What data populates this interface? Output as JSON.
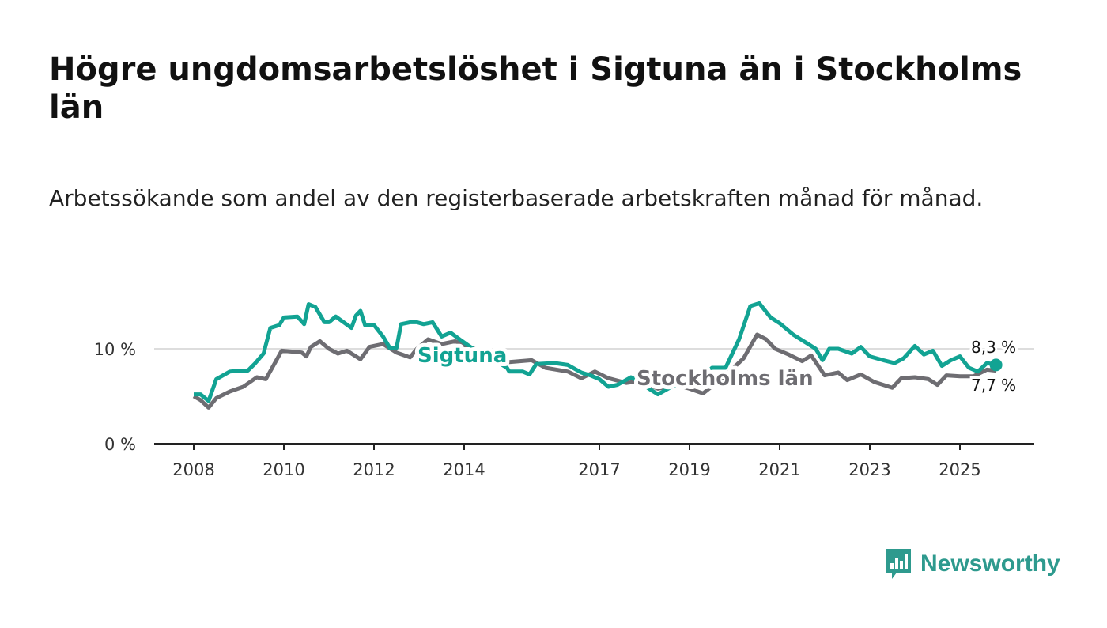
{
  "title": "Högre ungdomsarbetslöshet i Sigtuna än i Stockholms län",
  "subtitle": "Arbetssökande som andel av den registerbaserade arbetskraften månad för månad.",
  "brand": "Newsworthy",
  "colors": {
    "sigtuna": "#12a393",
    "stockholm": "#6e6d72",
    "grid": "#dddddd",
    "axis": "#222222",
    "brand": "#2e9a8e"
  },
  "chart_data": {
    "type": "line",
    "title": "Högre ungdomsarbetslöshet i Sigtuna än i Stockholms län",
    "xlabel": "",
    "ylabel": "",
    "xlim": [
      2007.5,
      2026.6
    ],
    "ylim": [
      0,
      15
    ],
    "x_ticks": [
      2008,
      2010,
      2012,
      2014,
      2017,
      2019,
      2021,
      2023,
      2025
    ],
    "x_tick_labels": [
      "2008",
      "2010",
      "2012",
      "2014",
      "2017",
      "2019",
      "2021",
      "2023",
      "2025"
    ],
    "y_ticks": [
      0,
      10
    ],
    "y_tick_labels": [
      "0 %",
      "10 %"
    ],
    "grid": "horizontal",
    "series": [
      {
        "name": "Sigtuna",
        "label": "Sigtuna",
        "end_label": "8,3 %",
        "points": [
          [
            2008.0,
            5.2
          ],
          [
            2008.15,
            5.2
          ],
          [
            2008.33,
            4.5
          ],
          [
            2008.5,
            6.8
          ],
          [
            2008.8,
            7.6
          ],
          [
            2009.0,
            7.7
          ],
          [
            2009.2,
            7.7
          ],
          [
            2009.35,
            8.4
          ],
          [
            2009.55,
            9.5
          ],
          [
            2009.7,
            12.2
          ],
          [
            2009.9,
            12.5
          ],
          [
            2010.0,
            13.3
          ],
          [
            2010.3,
            13.4
          ],
          [
            2010.45,
            12.6
          ],
          [
            2010.55,
            14.7
          ],
          [
            2010.7,
            14.4
          ],
          [
            2010.9,
            12.8
          ],
          [
            2011.0,
            12.8
          ],
          [
            2011.15,
            13.4
          ],
          [
            2011.5,
            12.2
          ],
          [
            2011.6,
            13.5
          ],
          [
            2011.7,
            14.0
          ],
          [
            2011.8,
            12.5
          ],
          [
            2012.0,
            12.5
          ],
          [
            2012.2,
            11.3
          ],
          [
            2012.35,
            10.1
          ],
          [
            2012.5,
            10.1
          ],
          [
            2012.6,
            12.6
          ],
          [
            2012.8,
            12.8
          ],
          [
            2012.95,
            12.8
          ],
          [
            2013.1,
            12.6
          ],
          [
            2013.3,
            12.8
          ],
          [
            2013.5,
            11.3
          ],
          [
            2013.7,
            11.7
          ],
          [
            2013.9,
            11.0
          ],
          [
            2014.2,
            10.0
          ],
          [
            2014.6,
            9.0
          ],
          [
            2014.95,
            8.0
          ],
          [
            2015.0,
            7.6
          ],
          [
            2015.3,
            7.6
          ],
          [
            2015.45,
            7.3
          ],
          [
            2015.6,
            8.4
          ],
          [
            2016.0,
            8.5
          ],
          [
            2016.3,
            8.3
          ],
          [
            2016.6,
            7.5
          ],
          [
            2016.8,
            7.2
          ],
          [
            2017.0,
            6.8
          ],
          [
            2017.2,
            6.0
          ],
          [
            2017.4,
            6.2
          ],
          [
            2017.7,
            7.0
          ],
          [
            2017.9,
            6.5
          ],
          [
            2018.1,
            5.8
          ],
          [
            2018.3,
            5.2
          ],
          [
            2018.6,
            6.0
          ],
          [
            2018.9,
            6.5
          ],
          [
            2019.2,
            6.8
          ],
          [
            2019.5,
            8.0
          ],
          [
            2019.8,
            8.0
          ],
          [
            2020.1,
            11.0
          ],
          [
            2020.35,
            14.5
          ],
          [
            2020.55,
            14.8
          ],
          [
            2020.8,
            13.3
          ],
          [
            2021.0,
            12.7
          ],
          [
            2021.3,
            11.5
          ],
          [
            2021.6,
            10.6
          ],
          [
            2021.8,
            10.0
          ],
          [
            2021.95,
            8.8
          ],
          [
            2022.1,
            10.0
          ],
          [
            2022.3,
            10.0
          ],
          [
            2022.6,
            9.5
          ],
          [
            2022.8,
            10.2
          ],
          [
            2023.0,
            9.2
          ],
          [
            2023.3,
            8.8
          ],
          [
            2023.55,
            8.5
          ],
          [
            2023.75,
            9.0
          ],
          [
            2024.0,
            10.3
          ],
          [
            2024.2,
            9.4
          ],
          [
            2024.4,
            9.8
          ],
          [
            2024.6,
            8.2
          ],
          [
            2024.8,
            8.8
          ],
          [
            2025.0,
            9.2
          ],
          [
            2025.2,
            8.0
          ],
          [
            2025.4,
            7.6
          ],
          [
            2025.6,
            8.5
          ],
          [
            2025.8,
            8.3
          ]
        ]
      },
      {
        "name": "Stockholms län",
        "label": "Stockholms län",
        "end_label": "7,7 %",
        "points": [
          [
            2008.0,
            5.0
          ],
          [
            2008.15,
            4.6
          ],
          [
            2008.33,
            3.8
          ],
          [
            2008.5,
            4.8
          ],
          [
            2008.8,
            5.5
          ],
          [
            2009.1,
            6.0
          ],
          [
            2009.4,
            7.0
          ],
          [
            2009.6,
            6.8
          ],
          [
            2009.8,
            8.5
          ],
          [
            2009.95,
            9.8
          ],
          [
            2010.2,
            9.7
          ],
          [
            2010.4,
            9.6
          ],
          [
            2010.5,
            9.2
          ],
          [
            2010.6,
            10.2
          ],
          [
            2010.8,
            10.8
          ],
          [
            2011.0,
            10.0
          ],
          [
            2011.2,
            9.5
          ],
          [
            2011.4,
            9.8
          ],
          [
            2011.7,
            8.9
          ],
          [
            2011.9,
            10.2
          ],
          [
            2012.2,
            10.5
          ],
          [
            2012.5,
            9.6
          ],
          [
            2012.8,
            9.1
          ],
          [
            2012.95,
            10.0
          ],
          [
            2013.2,
            11.0
          ],
          [
            2013.5,
            10.5
          ],
          [
            2013.8,
            10.8
          ],
          [
            2014.1,
            10.2
          ],
          [
            2014.7,
            9.2
          ],
          [
            2015.0,
            8.6
          ],
          [
            2015.5,
            8.8
          ],
          [
            2015.8,
            8.0
          ],
          [
            2016.3,
            7.6
          ],
          [
            2016.6,
            6.9
          ],
          [
            2016.9,
            7.6
          ],
          [
            2017.2,
            6.9
          ],
          [
            2017.6,
            6.4
          ],
          [
            2017.9,
            6.6
          ],
          [
            2018.3,
            5.8
          ],
          [
            2018.7,
            6.2
          ],
          [
            2019.0,
            5.8
          ],
          [
            2019.3,
            5.3
          ],
          [
            2019.8,
            7.2
          ],
          [
            2020.2,
            9.0
          ],
          [
            2020.5,
            11.5
          ],
          [
            2020.7,
            11.0
          ],
          [
            2020.9,
            10.0
          ],
          [
            2021.2,
            9.4
          ],
          [
            2021.5,
            8.7
          ],
          [
            2021.7,
            9.3
          ],
          [
            2022.0,
            7.2
          ],
          [
            2022.3,
            7.5
          ],
          [
            2022.5,
            6.7
          ],
          [
            2022.8,
            7.3
          ],
          [
            2023.1,
            6.5
          ],
          [
            2023.5,
            5.9
          ],
          [
            2023.7,
            6.9
          ],
          [
            2024.0,
            7.0
          ],
          [
            2024.3,
            6.8
          ],
          [
            2024.5,
            6.2
          ],
          [
            2024.7,
            7.2
          ],
          [
            2025.0,
            7.1
          ],
          [
            2025.3,
            7.1
          ],
          [
            2025.6,
            7.8
          ],
          [
            2025.8,
            7.7
          ]
        ]
      }
    ]
  }
}
